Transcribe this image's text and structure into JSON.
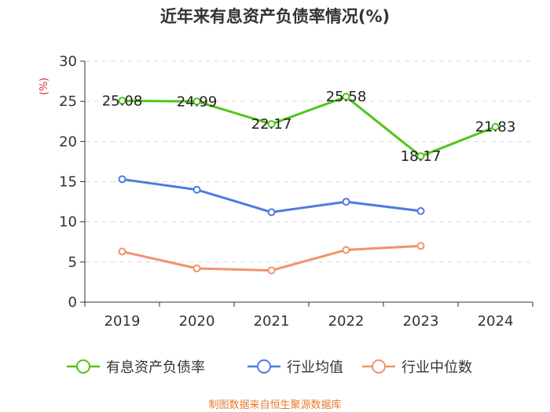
{
  "chart_data": {
    "type": "line",
    "title": "近年来有息资产负债率情况(%)",
    "ylabel": "(%)",
    "xlabel": "",
    "categories": [
      "2019",
      "2020",
      "2021",
      "2022",
      "2023",
      "2024"
    ],
    "ylim": [
      0,
      30
    ],
    "yticks": [
      0,
      5,
      10,
      15,
      20,
      25,
      30
    ],
    "grid": true,
    "legend_position": "bottom",
    "series": [
      {
        "name": "有息资产负债率",
        "color": "#52c41a",
        "values": [
          25.08,
          24.99,
          22.17,
          25.58,
          18.17,
          21.83
        ],
        "labels": [
          "25.08",
          "24.99",
          "22.17",
          "25.58",
          "18.17",
          "21.83"
        ],
        "show_labels": true
      },
      {
        "name": "行业均值",
        "color": "#4e7be0",
        "values": [
          15.3,
          14.0,
          11.2,
          12.5,
          11.35,
          null
        ],
        "show_labels": false
      },
      {
        "name": "行业中位数",
        "color": "#f0936a",
        "values": [
          6.3,
          4.2,
          3.95,
          6.5,
          7.0,
          null
        ],
        "show_labels": false
      }
    ]
  },
  "colors": {
    "unit_label": "#e0262c",
    "source_text": "#e8792c",
    "axis": "#333333",
    "grid": "#d9d9d9"
  },
  "source": "制图数据来自恒生聚源数据库"
}
